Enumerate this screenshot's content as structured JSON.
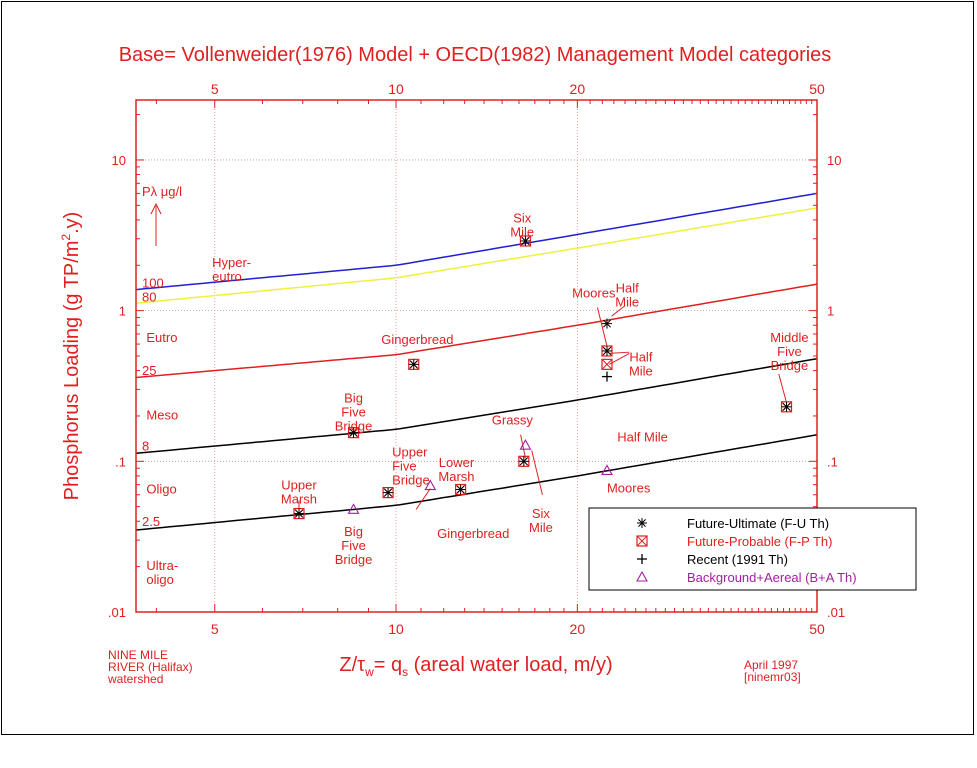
{
  "chart_data": {
    "type": "scatter",
    "title": "Base= Vollenweider(1976) Model + OECD(1982) Management Model categories",
    "xlabel_parts": {
      "z": "Z/",
      "tau": "τ",
      "w": "w",
      "rest": "= q",
      "s": "s",
      "tail": " (areal water load, m/y)"
    },
    "ylabel_parts": {
      "main": "Phosphorus Loading (g TP/m",
      "sup": "2",
      "tail": ".y)"
    },
    "x_scale": "log",
    "y_scale": "log",
    "xlim": [
      3.7,
      50
    ],
    "ylim": [
      0.01,
      25
    ],
    "x_ticks": [
      5,
      10,
      20,
      50
    ],
    "x_tick_labels": [
      "5",
      "10",
      "20",
      "50"
    ],
    "y_ticks": [
      0.01,
      0.1,
      1,
      10
    ],
    "y_tick_labels": [
      ".01",
      ".1",
      "1",
      "10"
    ],
    "grid": true,
    "p_axis_label": "Pλ μg/l",
    "curve_labels": [
      {
        "text": "100",
        "y": 1.3
      },
      {
        "text": "80",
        "y": 1.05
      },
      {
        "text": "25",
        "y": 0.34
      },
      {
        "text": "8",
        "y": 0.108
      },
      {
        "text": "2.5",
        "y": 0.034
      }
    ],
    "category_labels": [
      {
        "lines": [
          "Hyper-",
          "eutro"
        ],
        "x": 4.95,
        "y": 1.95
      },
      {
        "lines": [
          "Eutro"
        ],
        "x": 3.85,
        "y": 0.62
      },
      {
        "lines": [
          "Meso"
        ],
        "x": 3.85,
        "y": 0.19
      },
      {
        "lines": [
          "Oligo"
        ],
        "x": 3.85,
        "y": 0.061
      },
      {
        "lines": [
          "Ultra-",
          "oligo"
        ],
        "x": 3.85,
        "y": 0.019
      }
    ],
    "curves": [
      {
        "p": 100,
        "color": "#2020d0",
        "values": [
          [
            3.7,
            1.38
          ],
          [
            10,
            2.0
          ],
          [
            20,
            3.2
          ],
          [
            50,
            6.0
          ]
        ]
      },
      {
        "p": 80,
        "color": "#f0f040",
        "values": [
          [
            3.7,
            1.12
          ],
          [
            10,
            1.65
          ],
          [
            20,
            2.6
          ],
          [
            50,
            4.8
          ]
        ]
      },
      {
        "p": 25,
        "color": "#e02020",
        "values": [
          [
            3.7,
            0.36
          ],
          [
            10,
            0.51
          ],
          [
            20,
            0.8
          ],
          [
            50,
            1.5
          ]
        ]
      },
      {
        "p": 8,
        "color": "#000000",
        "values": [
          [
            3.7,
            0.113
          ],
          [
            10,
            0.163
          ],
          [
            20,
            0.255
          ],
          [
            50,
            0.48
          ]
        ]
      },
      {
        "p": 2.5,
        "color": "#000000",
        "values": [
          [
            3.7,
            0.035
          ],
          [
            10,
            0.051
          ],
          [
            20,
            0.08
          ],
          [
            50,
            0.15
          ]
        ]
      }
    ],
    "series": [
      {
        "name": "Future-Ultimate (F-U Th)",
        "marker": "asterisk",
        "color": "#000000",
        "points": [
          [
            6.9,
            0.045
          ],
          [
            8.5,
            0.155
          ],
          [
            9.7,
            0.062
          ],
          [
            10.7,
            0.44
          ],
          [
            12.8,
            0.065
          ],
          [
            16.3,
            0.1
          ],
          [
            16.4,
            2.9
          ],
          [
            22.4,
            0.82
          ],
          [
            22.4,
            0.54
          ],
          [
            44.5,
            0.23
          ]
        ]
      },
      {
        "name": "Future-Probable (F-P Th)",
        "marker": "boxx",
        "color": "#e02020",
        "points": [
          [
            6.9,
            0.045
          ],
          [
            8.5,
            0.155
          ],
          [
            9.7,
            0.062
          ],
          [
            10.7,
            0.44
          ],
          [
            12.8,
            0.065
          ],
          [
            16.3,
            0.1
          ],
          [
            16.4,
            2.9
          ],
          [
            22.4,
            0.54
          ],
          [
            22.4,
            0.44
          ],
          [
            44.5,
            0.23
          ]
        ]
      },
      {
        "name": "Recent (1991 Th)",
        "marker": "plus",
        "color": "#000000",
        "points": [
          [
            22.4,
            0.365
          ]
        ]
      },
      {
        "name": "Background+Aereal (B+A Th)",
        "marker": "triangle",
        "color": "#a020a0",
        "points": [
          [
            8.5,
            0.048
          ],
          [
            11.4,
            0.069
          ],
          [
            16.4,
            0.128
          ],
          [
            22.4,
            0.087
          ]
        ]
      }
    ],
    "point_labels": [
      {
        "lines": [
          "Upper",
          "Marsh"
        ],
        "x": 6.9,
        "y": 0.065,
        "anchor": "middle"
      },
      {
        "lines": [
          "Big",
          "Five",
          "Bridge"
        ],
        "x": 8.5,
        "y": 0.245,
        "anchor": "middle"
      },
      {
        "lines": [
          "Upper",
          "Five",
          "Bridge"
        ],
        "x": 9.85,
        "y": 0.108,
        "anchor": "start"
      },
      {
        "lines": [
          "Gingerbread"
        ],
        "x": 10.85,
        "y": 0.6,
        "anchor": "middle"
      },
      {
        "lines": [
          "Lower",
          "Marsh"
        ],
        "x": 12.6,
        "y": 0.092,
        "anchor": "middle"
      },
      {
        "lines": [
          "Grassy"
        ],
        "x": 15.6,
        "y": 0.175,
        "anchor": "middle"
      },
      {
        "lines": [
          "Six",
          "Mile"
        ],
        "x": 16.2,
        "y": 3.85,
        "anchor": "middle"
      },
      {
        "lines": [
          "Moores"
        ],
        "x": 21.3,
        "y": 1.22,
        "anchor": "middle"
      },
      {
        "lines": [
          "Half",
          "Mile"
        ],
        "x": 24.2,
        "y": 1.32,
        "anchor": "middle"
      },
      {
        "lines": [
          "Half",
          "Mile"
        ],
        "x": 25.5,
        "y": 0.46,
        "anchor": "middle"
      },
      {
        "lines": [
          "Middle",
          "Five",
          "Bridge"
        ],
        "x": 45.0,
        "y": 0.62,
        "anchor": "middle"
      },
      {
        "lines": [
          "Half Mile"
        ],
        "x": 23.3,
        "y": 0.135,
        "anchor": "start"
      },
      {
        "lines": [
          "Moores"
        ],
        "x": 22.4,
        "y": 0.062,
        "anchor": "start"
      },
      {
        "lines": [
          "Six",
          "Mile"
        ],
        "x": 17.4,
        "y": 0.042,
        "anchor": "middle"
      },
      {
        "lines": [
          "Big",
          "Five",
          "Bridge"
        ],
        "x": 8.5,
        "y": 0.032,
        "anchor": "middle"
      },
      {
        "lines": [
          "Gingerbread"
        ],
        "x": 11.7,
        "y": 0.031,
        "anchor": "start"
      }
    ],
    "leader_lines": [
      [
        [
          6.9,
          0.055
        ],
        [
          6.9,
          0.048
        ]
      ],
      [
        [
          10.8,
          0.048
        ],
        [
          11.4,
          0.066
        ]
      ],
      [
        [
          16.1,
          0.15
        ],
        [
          16.4,
          0.105
        ]
      ],
      [
        [
          22.8,
          0.92
        ],
        [
          24.0,
          1.08
        ]
      ],
      [
        [
          21.6,
          1.05
        ],
        [
          22.4,
          0.58
        ]
      ],
      [
        [
          22.6,
          0.52
        ],
        [
          24.4,
          0.53
        ]
      ],
      [
        [
          22.6,
          0.44
        ],
        [
          24.4,
          0.52
        ]
      ],
      [
        [
          43.2,
          0.38
        ],
        [
          44.5,
          0.245
        ]
      ],
      [
        [
          16.8,
          0.118
        ],
        [
          17.5,
          0.06
        ]
      ]
    ],
    "legend_position": "bottom-right",
    "footer": {
      "left_lines": [
        "NINE MILE",
        "RIVER (Halifax)",
        "watershed"
      ],
      "right_lines": [
        "April 1997",
        "[ninemr03]"
      ]
    }
  }
}
